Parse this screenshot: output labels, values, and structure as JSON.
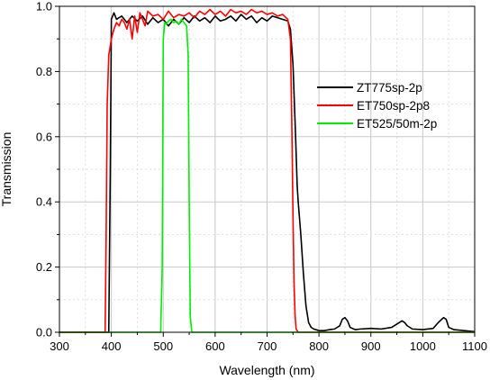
{
  "chart_data": {
    "type": "line",
    "xlabel": "Wavelength (nm)",
    "ylabel": "Transmission",
    "xlim": [
      300,
      1100
    ],
    "ylim": [
      0,
      1.0
    ],
    "x_ticks": [
      "300",
      "400",
      "500",
      "600",
      "700",
      "800",
      "900",
      "1000",
      "1100"
    ],
    "y_ticks": [
      "0.0",
      "0.2",
      "0.4",
      "0.6",
      "0.8",
      "1.0"
    ],
    "grid": true,
    "legend_position": "center-right",
    "series": [
      {
        "name": "ZT775sp-2p",
        "color": "#000000",
        "x": [
          300,
          395,
          398,
          400,
          405,
          410,
          420,
          430,
          440,
          450,
          460,
          470,
          480,
          490,
          500,
          510,
          520,
          530,
          540,
          550,
          560,
          570,
          580,
          590,
          600,
          610,
          620,
          630,
          640,
          650,
          660,
          670,
          680,
          690,
          700,
          710,
          720,
          730,
          740,
          745,
          750,
          755,
          758,
          760,
          765,
          770,
          775,
          780,
          785,
          790,
          800,
          810,
          820,
          830,
          840,
          845,
          850,
          855,
          860,
          870,
          880,
          900,
          920,
          940,
          950,
          960,
          965,
          970,
          980,
          1000,
          1020,
          1030,
          1040,
          1045,
          1050,
          1060,
          1080,
          1100
        ],
        "y": [
          0,
          0,
          0.5,
          0.96,
          0.98,
          0.96,
          0.97,
          0.95,
          0.97,
          0.955,
          0.97,
          0.945,
          0.965,
          0.95,
          0.96,
          0.94,
          0.96,
          0.945,
          0.965,
          0.95,
          0.97,
          0.955,
          0.965,
          0.95,
          0.97,
          0.955,
          0.96,
          0.97,
          0.955,
          0.975,
          0.96,
          0.97,
          0.95,
          0.965,
          0.955,
          0.97,
          0.965,
          0.96,
          0.955,
          0.93,
          0.82,
          0.6,
          0.45,
          0.4,
          0.3,
          0.18,
          0.08,
          0.03,
          0.015,
          0.01,
          0.005,
          0.005,
          0.008,
          0.01,
          0.02,
          0.04,
          0.045,
          0.035,
          0.015,
          0.008,
          0.01,
          0.012,
          0.01,
          0.015,
          0.025,
          0.035,
          0.03,
          0.02,
          0.01,
          0.008,
          0.012,
          0.03,
          0.045,
          0.04,
          0.015,
          0.008,
          0.005,
          0.002
        ]
      },
      {
        "name": "ET750sp-2p8",
        "color": "#ff0000",
        "x": [
          300,
          388,
          390,
          392,
          395,
          398,
          400,
          405,
          410,
          415,
          420,
          425,
          430,
          435,
          440,
          445,
          450,
          455,
          460,
          465,
          470,
          480,
          490,
          500,
          510,
          520,
          530,
          540,
          550,
          560,
          570,
          580,
          590,
          600,
          610,
          620,
          630,
          640,
          650,
          660,
          670,
          680,
          690,
          700,
          710,
          720,
          730,
          740,
          745,
          748,
          750,
          752,
          754,
          756,
          760,
          1100
        ],
        "y": [
          0,
          0,
          0.3,
          0.7,
          0.85,
          0.88,
          0.9,
          0.93,
          0.95,
          0.94,
          0.96,
          0.95,
          0.93,
          0.96,
          0.9,
          0.97,
          0.92,
          0.98,
          0.96,
          0.94,
          0.985,
          0.97,
          0.975,
          0.96,
          0.985,
          0.965,
          0.975,
          0.97,
          0.98,
          0.965,
          0.985,
          0.975,
          0.99,
          0.975,
          0.985,
          0.97,
          0.99,
          0.98,
          0.985,
          0.975,
          0.99,
          0.98,
          0.985,
          0.975,
          0.98,
          0.97,
          0.975,
          0.96,
          0.9,
          0.6,
          0.35,
          0.15,
          0.05,
          0.01,
          0,
          0
        ]
      },
      {
        "name": "ET525/50m-2p",
        "color": "#00ee00",
        "x": [
          300,
          495,
          498,
          500,
          503,
          506,
          510,
          515,
          520,
          525,
          530,
          535,
          540,
          545,
          548,
          550,
          552,
          555,
          1100
        ],
        "y": [
          0,
          0,
          0.2,
          0.9,
          0.95,
          0.945,
          0.955,
          0.96,
          0.95,
          0.955,
          0.945,
          0.96,
          0.95,
          0.94,
          0.85,
          0.4,
          0.05,
          0,
          0
        ]
      }
    ]
  }
}
